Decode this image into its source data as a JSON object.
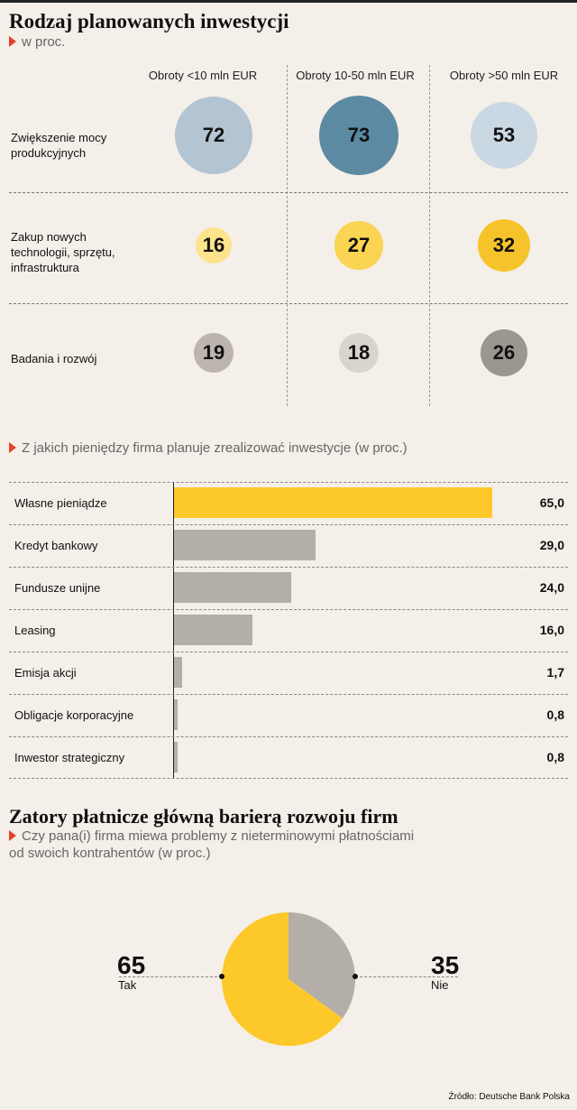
{
  "section1": {
    "title": "Rodzaj planowanych inwestycji",
    "subtitle": "w proc.",
    "columns": [
      "Obroty <10 mln EUR",
      "Obroty 10-50 mln EUR",
      "Obroty >50 mln EUR"
    ],
    "rows": [
      {
        "label": "Zwiększenie mocy produkcyjnych",
        "values": [
          72,
          73,
          53
        ],
        "colors": [
          "#b3c4d3",
          "#5d8aa3",
          "#cad8e3"
        ]
      },
      {
        "label": "Zakup nowych technologii, sprzętu, infrastruktura",
        "values": [
          16,
          27,
          32
        ],
        "colors": [
          "#fce38c",
          "#fad452",
          "#f6c42a"
        ]
      },
      {
        "label": "Badania i rozwój",
        "values": [
          19,
          18,
          26
        ],
        "colors": [
          "#bbb5ae",
          "#d9d4ce",
          "#9b9690"
        ]
      }
    ]
  },
  "section2": {
    "subtitle": "Z jakich pieniędzy firma planuje zrealizować inwestycje (w proc.)",
    "highlight_color": "#fdc92a",
    "bar_color": "#b3aea8"
  },
  "section3": {
    "title": "Zatory płatnicze główną barierą rozwoju firm",
    "subtitle_line1": "Czy pana(i) firma miewa problemy z nieterminowymi płatnościami",
    "subtitle_line2": "od swoich kontrahentów (w proc.)",
    "source": "Źródło: Deutsche Bank Polska"
  },
  "chart_data": [
    {
      "type": "scatter",
      "title": "Rodzaj planowanych inwestycji",
      "subtitle": "w proc.",
      "categories": [
        "Obroty <10 mln EUR",
        "Obroty 10-50 mln EUR",
        "Obroty >50 mln EUR"
      ],
      "series": [
        {
          "name": "Zwiększenie mocy produkcyjnych",
          "values": [
            72,
            73,
            53
          ]
        },
        {
          "name": "Zakup nowych technologii, sprzętu, infrastruktura",
          "values": [
            16,
            27,
            32
          ]
        },
        {
          "name": "Badania i rozwój",
          "values": [
            19,
            18,
            26
          ]
        }
      ]
    },
    {
      "type": "bar",
      "title": "Z jakich pieniędzy firma planuje zrealizować inwestycje (w proc.)",
      "categories": [
        "Własne pieniądze",
        "Kredyt bankowy",
        "Fundusze unijne",
        "Leasing",
        "Emisja akcji",
        "Obligacje korporacyjne",
        "Inwestor strategiczny"
      ],
      "values": [
        65.0,
        29.0,
        24.0,
        16.0,
        1.7,
        0.8,
        0.8
      ],
      "value_labels": [
        "65,0",
        "29,0",
        "24,0",
        "16,0",
        "1,7",
        "0,8",
        "0,8"
      ],
      "xlim": [
        0,
        65
      ]
    },
    {
      "type": "pie",
      "title": "Zatory płatnicze główną barierą rozwoju firm",
      "labels": [
        "Tak",
        "Nie"
      ],
      "values": [
        65,
        35
      ],
      "colors": [
        "#fdc92a",
        "#b3aea8"
      ]
    }
  ]
}
